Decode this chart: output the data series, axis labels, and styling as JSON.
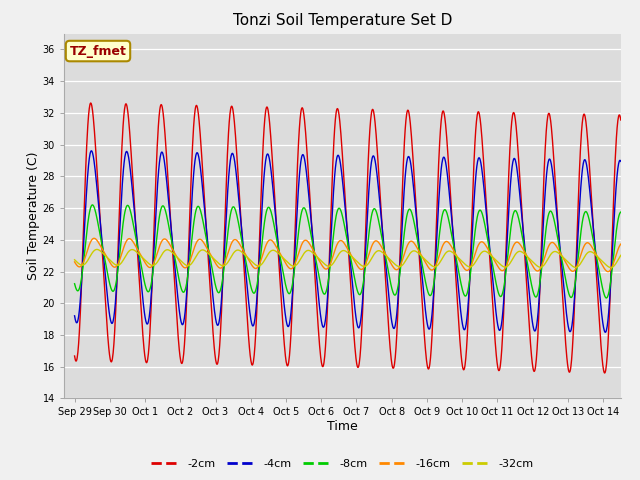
{
  "title": "Tonzi Soil Temperature Set D",
  "xlabel": "Time",
  "ylabel": "Soil Temperature (C)",
  "ylim": [
    14,
    37
  ],
  "yticks": [
    14,
    16,
    18,
    20,
    22,
    24,
    26,
    28,
    30,
    32,
    34,
    36
  ],
  "fig_bg": "#f0f0f0",
  "plot_bg": "#dcdcdc",
  "annotation_text": "TZ_fmet",
  "annotation_bg": "#ffffcc",
  "annotation_border": "#aa8800",
  "series": [
    {
      "label": "-2cm",
      "color": "#dd0000",
      "amplitude": 9.0,
      "mean": 24.5,
      "phase": 0.0,
      "depth_lag": 0.0,
      "trend": -0.05
    },
    {
      "label": "-4cm",
      "color": "#0000cc",
      "amplitude": 6.0,
      "mean": 24.2,
      "phase": 0.0,
      "depth_lag": 0.12,
      "trend": -0.04
    },
    {
      "label": "-8cm",
      "color": "#00cc00",
      "amplitude": 3.0,
      "mean": 23.5,
      "phase": 0.0,
      "depth_lag": 0.3,
      "trend": -0.03
    },
    {
      "label": "-16cm",
      "color": "#ff8800",
      "amplitude": 1.0,
      "mean": 23.2,
      "phase": 0.0,
      "depth_lag": 0.6,
      "trend": -0.02
    },
    {
      "label": "-32cm",
      "color": "#cccc00",
      "amplitude": 0.55,
      "mean": 22.9,
      "phase": 0.0,
      "depth_lag": 1.1,
      "trend": -0.01
    }
  ],
  "num_days": 15.5,
  "points_per_day": 96,
  "xtick_days": [
    "Sep 29",
    "Sep 30",
    "Oct 1",
    "Oct 2",
    "Oct 3",
    "Oct 4",
    "Oct 5",
    "Oct 6",
    "Oct 7",
    "Oct 8",
    "Oct 9",
    "Oct 10",
    "Oct 11",
    "Oct 12",
    "Oct 13",
    "Oct 14"
  ],
  "linewidth": 1.0,
  "legend_fontsize": 8,
  "title_fontsize": 11,
  "tick_fontsize": 7,
  "axis_label_fontsize": 9
}
